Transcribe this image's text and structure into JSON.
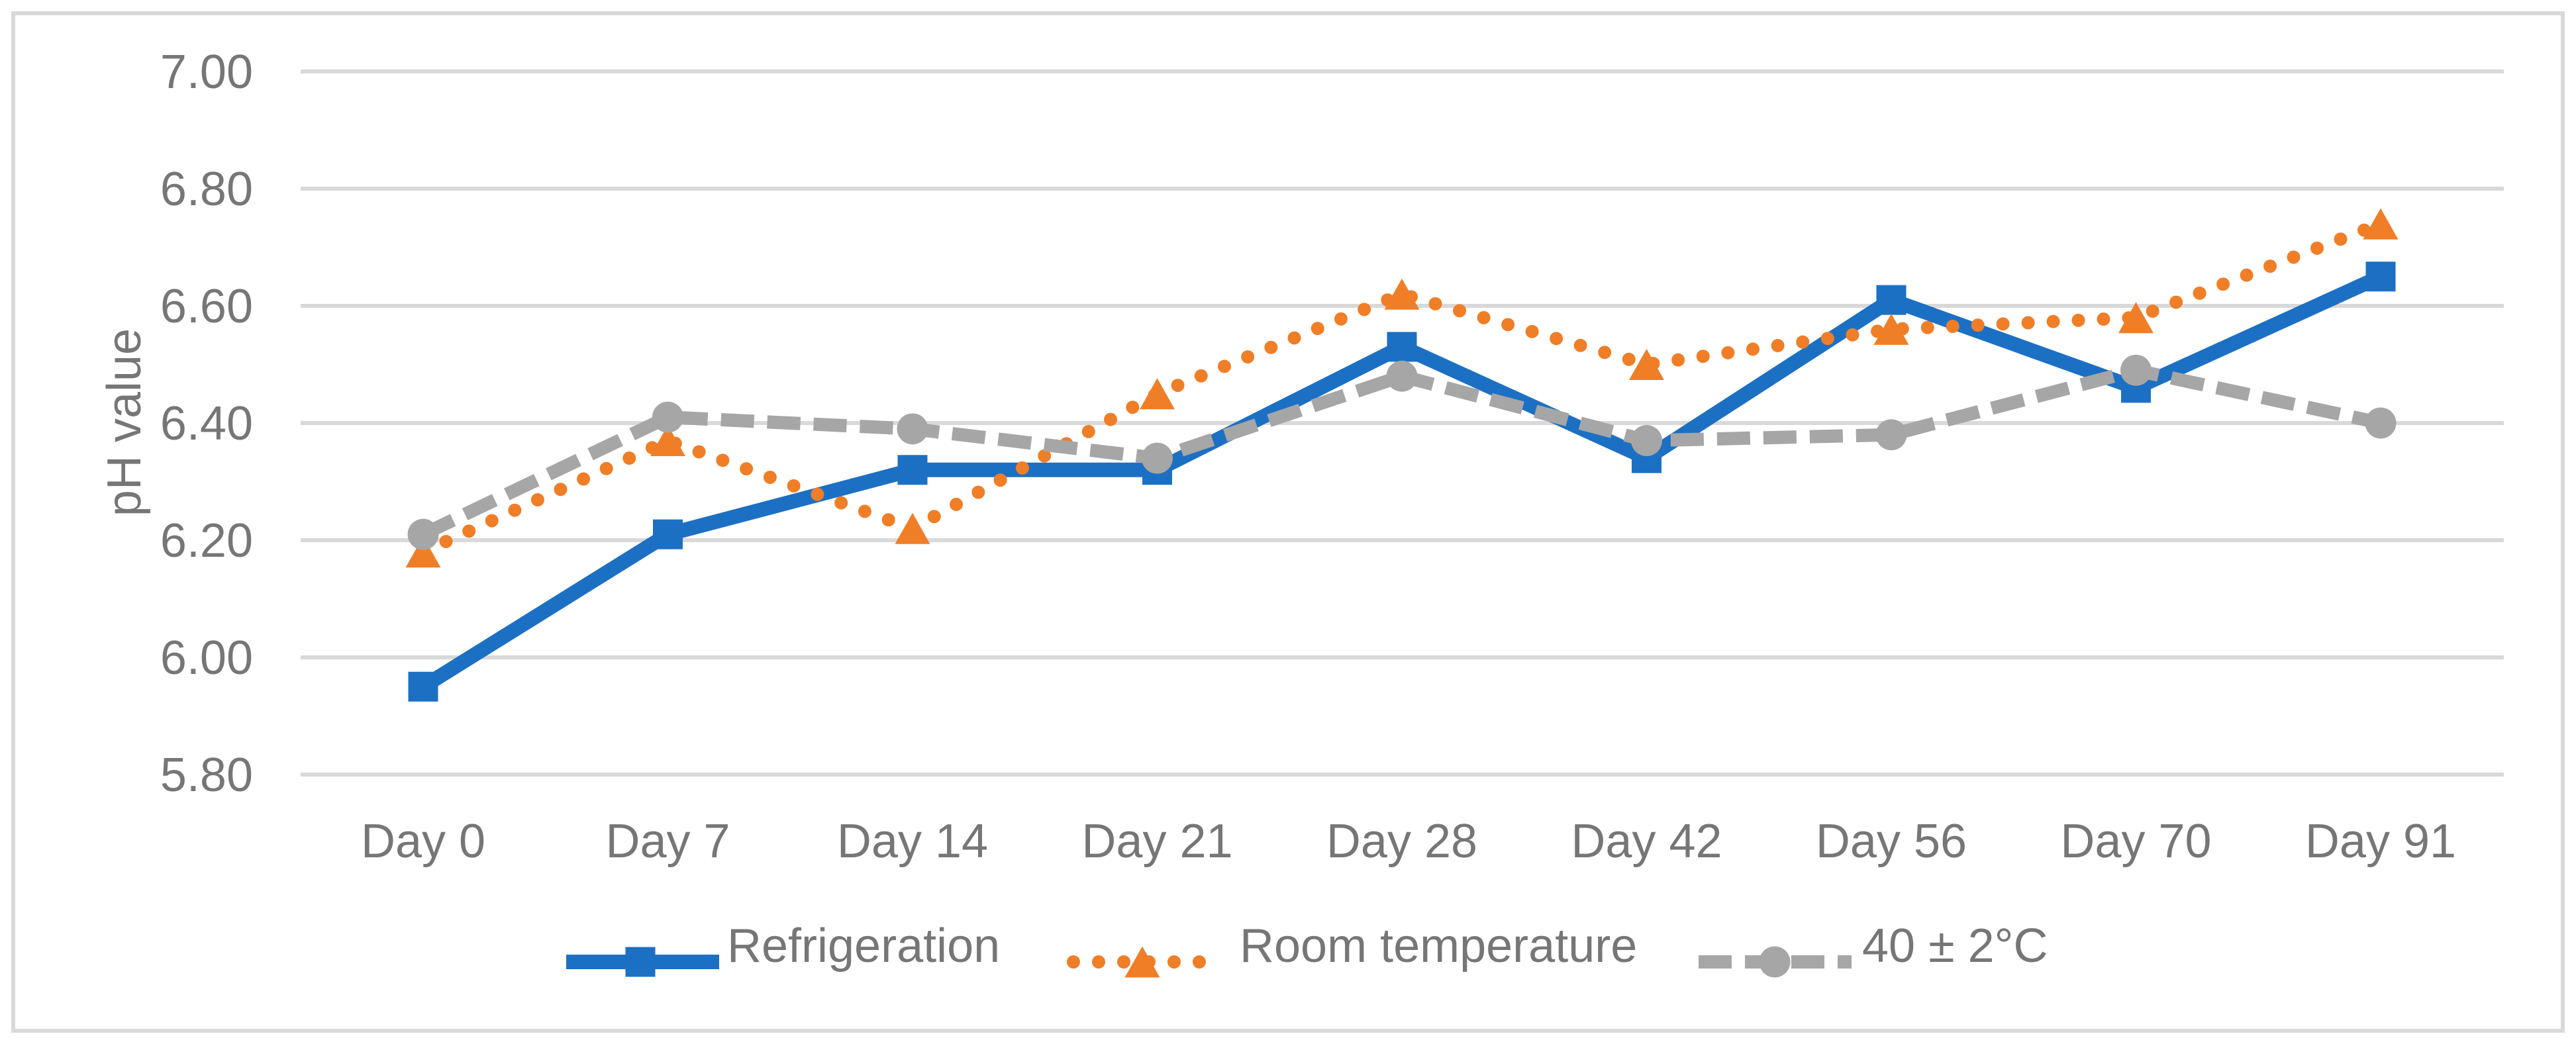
{
  "figure": {
    "background": "#FFFFFF",
    "border_color": "#D9D9D9",
    "axis_text_color": "#767676",
    "gridline_color": "#D9D9D9"
  },
  "chart_data": {
    "type": "line",
    "title": "",
    "xlabel": "",
    "ylabel": "pH value",
    "ylim": [
      5.8,
      7.0
    ],
    "y_tick_step": 0.2,
    "y_ticks": [
      "7.00",
      "6.80",
      "6.60",
      "6.40",
      "6.20",
      "6.00",
      "5.80"
    ],
    "grid": true,
    "legend_position": "bottom",
    "categories": [
      "Day 0",
      "Day 7",
      "Day 14",
      "Day 21",
      "Day 28",
      "Day 42",
      "Day 56",
      "Day 70",
      "Day 91"
    ],
    "series": [
      {
        "name": "Refrigeration",
        "color": "#1C70C4",
        "line_style": "solid",
        "marker": "square",
        "values": [
          5.95,
          6.21,
          6.32,
          6.32,
          6.53,
          6.34,
          6.61,
          6.46,
          6.65
        ]
      },
      {
        "name": "Room temperature",
        "color": "#F07E27",
        "line_style": "dotted",
        "marker": "triangle",
        "values": [
          6.18,
          6.37,
          6.22,
          6.45,
          6.62,
          6.5,
          6.56,
          6.58,
          6.74
        ]
      },
      {
        "name": "40 ± 2°C",
        "color": "#A6A6A6",
        "line_style": "dashed",
        "marker": "circle",
        "values": [
          6.21,
          6.41,
          6.39,
          6.34,
          6.48,
          6.37,
          6.38,
          6.49,
          6.4
        ]
      }
    ]
  }
}
